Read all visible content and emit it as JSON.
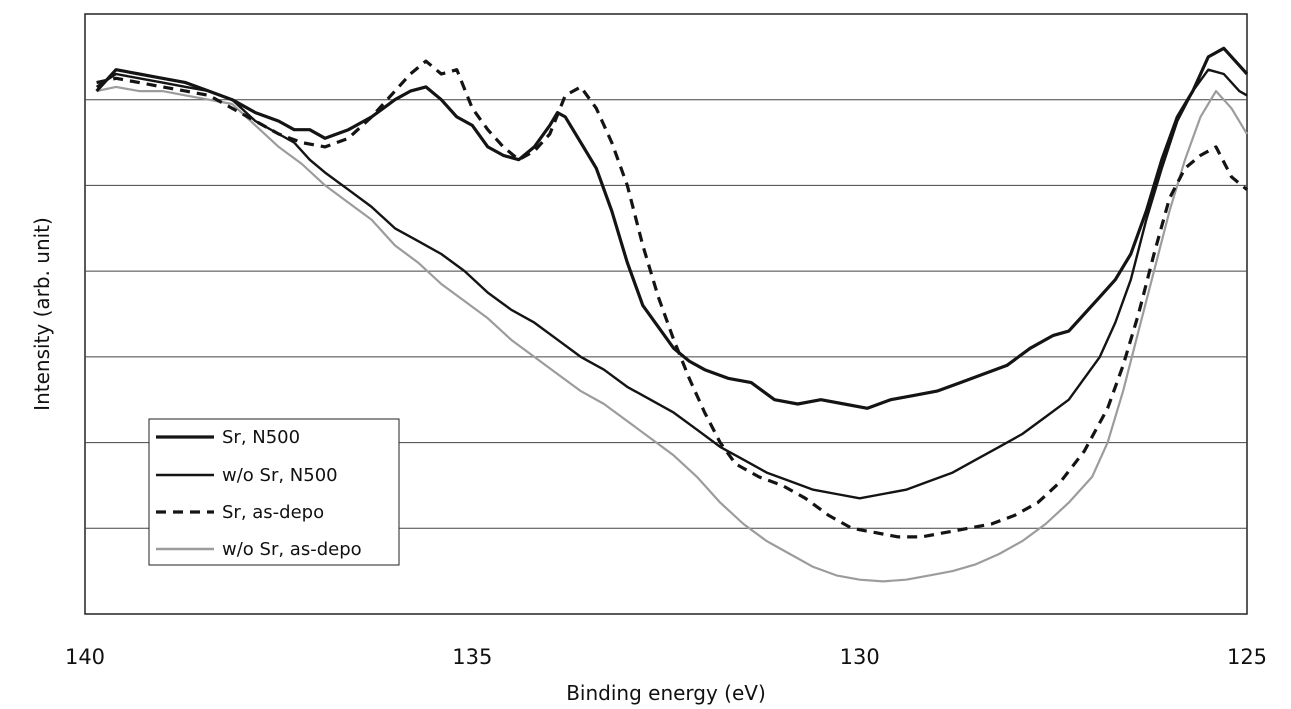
{
  "chart_data": {
    "type": "line",
    "title": "",
    "xlabel": "Binding energy (eV)",
    "ylabel": "Intensity (arb. unit)",
    "xlim": [
      140,
      125
    ],
    "ylim": [
      0,
      7
    ],
    "x_ticks": [
      "140",
      "135",
      "130",
      "125"
    ],
    "x_tick_values": [
      140,
      135,
      130,
      125
    ],
    "y_gridlines": [
      1,
      2,
      3,
      4,
      5,
      6
    ],
    "legend_position": "bottom-left",
    "colors": {
      "dark": "#141414",
      "gray": "#9c9c9c",
      "grid": "#444444"
    },
    "series": [
      {
        "name": "Sr, N500",
        "style": "solid-bold",
        "x": [
          139.85,
          139.6,
          139.3,
          139,
          138.7,
          138.4,
          138.1,
          137.8,
          137.5,
          137.3,
          137.1,
          136.9,
          136.6,
          136.3,
          136.0,
          135.8,
          135.6,
          135.4,
          135.2,
          135.0,
          134.8,
          134.6,
          134.4,
          134.2,
          134.0,
          133.9,
          133.8,
          133.6,
          133.4,
          133.2,
          133.0,
          132.8,
          132.6,
          132.4,
          132.2,
          132.0,
          131.7,
          131.4,
          131.1,
          130.8,
          130.5,
          130.2,
          129.9,
          129.6,
          129.3,
          129.0,
          128.7,
          128.4,
          128.1,
          127.8,
          127.5,
          127.3,
          127.1,
          126.9,
          126.7,
          126.5,
          126.3,
          126.1,
          125.9,
          125.7,
          125.5,
          125.3,
          125.1,
          125.0
        ],
        "y": [
          6.1,
          6.35,
          6.3,
          6.25,
          6.2,
          6.1,
          6.0,
          5.85,
          5.75,
          5.65,
          5.65,
          5.55,
          5.65,
          5.8,
          6.0,
          6.1,
          6.15,
          6.0,
          5.8,
          5.7,
          5.45,
          5.35,
          5.3,
          5.45,
          5.7,
          5.85,
          5.8,
          5.5,
          5.2,
          4.7,
          4.1,
          3.6,
          3.35,
          3.1,
          2.95,
          2.85,
          2.75,
          2.7,
          2.5,
          2.45,
          2.5,
          2.45,
          2.4,
          2.5,
          2.55,
          2.6,
          2.7,
          2.8,
          2.9,
          3.1,
          3.25,
          3.3,
          3.5,
          3.7,
          3.9,
          4.2,
          4.7,
          5.3,
          5.8,
          6.1,
          6.5,
          6.6,
          6.4,
          6.3
        ]
      },
      {
        "name": "w/o Sr, N500",
        "style": "solid",
        "x": [
          139.85,
          139.6,
          139.3,
          139,
          138.7,
          138.4,
          138.1,
          137.8,
          137.5,
          137.3,
          137.1,
          136.9,
          136.6,
          136.3,
          136.0,
          135.7,
          135.4,
          135.1,
          134.8,
          134.5,
          134.2,
          133.9,
          133.6,
          133.3,
          133.0,
          132.7,
          132.4,
          132.1,
          131.8,
          131.5,
          131.2,
          130.9,
          130.6,
          130.3,
          130.0,
          129.7,
          129.4,
          129.1,
          128.8,
          128.5,
          128.2,
          127.9,
          127.6,
          127.3,
          127.1,
          126.9,
          126.7,
          126.5,
          126.3,
          126.1,
          125.9,
          125.7,
          125.5,
          125.3,
          125.1,
          125.0
        ],
        "y": [
          6.15,
          6.3,
          6.25,
          6.2,
          6.15,
          6.1,
          6.0,
          5.75,
          5.6,
          5.5,
          5.3,
          5.15,
          4.95,
          4.75,
          4.5,
          4.35,
          4.2,
          4.0,
          3.75,
          3.55,
          3.4,
          3.2,
          3.0,
          2.85,
          2.65,
          2.5,
          2.35,
          2.15,
          1.95,
          1.8,
          1.65,
          1.55,
          1.45,
          1.4,
          1.35,
          1.4,
          1.45,
          1.55,
          1.65,
          1.8,
          1.95,
          2.1,
          2.3,
          2.5,
          2.75,
          3.0,
          3.4,
          3.9,
          4.6,
          5.2,
          5.75,
          6.1,
          6.35,
          6.3,
          6.1,
          6.05
        ]
      },
      {
        "name": "Sr, as-depo",
        "style": "dashed",
        "x": [
          139.85,
          139.6,
          139.3,
          139,
          138.7,
          138.4,
          138.1,
          137.8,
          137.5,
          137.2,
          136.9,
          136.6,
          136.3,
          136.0,
          135.8,
          135.6,
          135.4,
          135.2,
          135.0,
          134.8,
          134.6,
          134.4,
          134.2,
          134.0,
          133.8,
          133.6,
          133.4,
          133.2,
          133.0,
          132.8,
          132.6,
          132.4,
          132.2,
          132.0,
          131.8,
          131.6,
          131.3,
          131.0,
          130.7,
          130.4,
          130.1,
          129.8,
          129.5,
          129.2,
          128.9,
          128.6,
          128.3,
          128.0,
          127.7,
          127.4,
          127.1,
          126.8,
          126.6,
          126.4,
          126.2,
          126.0,
          125.8,
          125.6,
          125.4,
          125.2,
          125.0
        ],
        "y": [
          6.2,
          6.25,
          6.2,
          6.15,
          6.1,
          6.05,
          5.9,
          5.75,
          5.6,
          5.5,
          5.45,
          5.55,
          5.8,
          6.1,
          6.3,
          6.45,
          6.3,
          6.35,
          5.9,
          5.65,
          5.45,
          5.3,
          5.4,
          5.6,
          6.05,
          6.15,
          5.9,
          5.5,
          5.0,
          4.3,
          3.7,
          3.2,
          2.75,
          2.35,
          2.0,
          1.75,
          1.6,
          1.5,
          1.35,
          1.15,
          1.0,
          0.95,
          0.9,
          0.9,
          0.95,
          1.0,
          1.05,
          1.15,
          1.3,
          1.55,
          1.9,
          2.4,
          2.9,
          3.5,
          4.2,
          4.85,
          5.2,
          5.35,
          5.45,
          5.1,
          4.95
        ]
      },
      {
        "name": "w/o Sr, as-depo",
        "style": "gray",
        "x": [
          139.85,
          139.6,
          139.3,
          139,
          138.7,
          138.4,
          138.1,
          137.8,
          137.5,
          137.2,
          136.9,
          136.6,
          136.3,
          136.0,
          135.7,
          135.4,
          135.1,
          134.8,
          134.5,
          134.2,
          133.9,
          133.6,
          133.3,
          133.0,
          132.7,
          132.4,
          132.1,
          131.8,
          131.5,
          131.2,
          130.9,
          130.6,
          130.3,
          130.0,
          129.7,
          129.4,
          129.1,
          128.8,
          128.5,
          128.2,
          127.9,
          127.6,
          127.3,
          127.0,
          126.8,
          126.6,
          126.4,
          126.2,
          126.0,
          125.8,
          125.6,
          125.4,
          125.2,
          125.0
        ],
        "y": [
          6.1,
          6.15,
          6.1,
          6.1,
          6.05,
          6.0,
          5.95,
          5.7,
          5.45,
          5.25,
          5.0,
          4.8,
          4.6,
          4.3,
          4.1,
          3.85,
          3.65,
          3.45,
          3.2,
          3.0,
          2.8,
          2.6,
          2.45,
          2.25,
          2.05,
          1.85,
          1.6,
          1.3,
          1.05,
          0.85,
          0.7,
          0.55,
          0.45,
          0.4,
          0.38,
          0.4,
          0.45,
          0.5,
          0.58,
          0.7,
          0.85,
          1.05,
          1.3,
          1.6,
          2.0,
          2.6,
          3.3,
          4.0,
          4.7,
          5.3,
          5.8,
          6.1,
          5.9,
          5.6
        ]
      }
    ]
  }
}
